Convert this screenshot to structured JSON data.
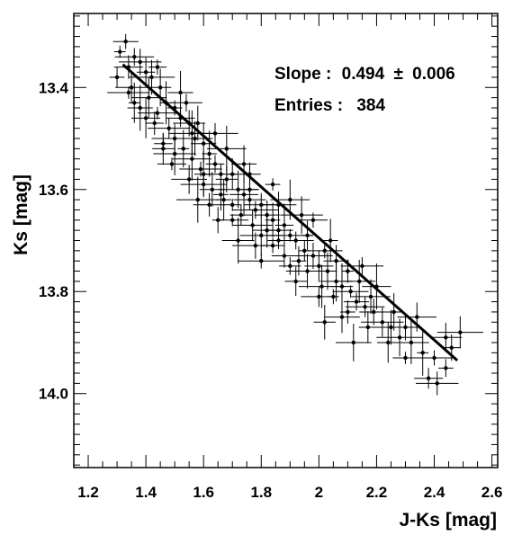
{
  "chart_data": {
    "type": "scatter",
    "xlabel": "J-Ks [mag]",
    "ylabel": "Ks [mag]",
    "xlim": [
      1.15,
      2.62
    ],
    "ylim": [
      13.255,
      14.145
    ],
    "y_inverted": true,
    "x_ticks": [
      {
        "value": 1.2,
        "label": "1.2"
      },
      {
        "value": 1.4,
        "label": "1.4"
      },
      {
        "value": 1.6,
        "label": "1.6"
      },
      {
        "value": 1.8,
        "label": "1.8"
      },
      {
        "value": 2.0,
        "label": "2"
      },
      {
        "value": 2.2,
        "label": "2.2"
      },
      {
        "value": 2.4,
        "label": "2.4"
      },
      {
        "value": 2.6,
        "label": "2.6"
      }
    ],
    "y_ticks": [
      {
        "value": 13.4,
        "label": "13.4"
      },
      {
        "value": 13.6,
        "label": "13.6"
      },
      {
        "value": 13.8,
        "label": "13.8"
      },
      {
        "value": 14.0,
        "label": "14.0"
      }
    ],
    "fit_line": {
      "x": [
        1.32,
        2.48
      ],
      "y": [
        13.355,
        13.935
      ]
    },
    "annotations": {
      "slope_label": "Slope :",
      "slope_value": "0.494",
      "slope_pm": "±",
      "slope_err": "0.006",
      "entries_label": "Entries :",
      "entries_value": "384"
    },
    "x_err": [
      0.02,
      0.08
    ],
    "y_err": [
      0.012,
      0.045
    ],
    "points": [
      [
        1.31,
        13.33
      ],
      [
        1.33,
        13.31
      ],
      [
        1.36,
        13.34
      ],
      [
        1.3,
        13.38
      ],
      [
        1.34,
        13.36
      ],
      [
        1.38,
        13.35
      ],
      [
        1.4,
        13.37
      ],
      [
        1.35,
        13.4
      ],
      [
        1.42,
        13.38
      ],
      [
        1.45,
        13.4
      ],
      [
        1.41,
        13.42
      ],
      [
        1.47,
        13.43
      ],
      [
        1.38,
        13.44
      ],
      [
        1.44,
        13.45
      ],
      [
        1.5,
        13.44
      ],
      [
        1.52,
        13.46
      ],
      [
        1.48,
        13.48
      ],
      [
        1.43,
        13.47
      ],
      [
        1.55,
        13.47
      ],
      [
        1.5,
        13.5
      ],
      [
        1.46,
        13.52
      ],
      [
        1.57,
        13.5
      ],
      [
        1.53,
        13.52
      ],
      [
        1.6,
        13.51
      ],
      [
        1.56,
        13.54
      ],
      [
        1.62,
        13.53
      ],
      [
        1.49,
        13.55
      ],
      [
        1.59,
        13.56
      ],
      [
        1.64,
        13.55
      ],
      [
        1.66,
        13.57
      ],
      [
        1.6,
        13.59
      ],
      [
        1.68,
        13.58
      ],
      [
        1.55,
        13.58
      ],
      [
        1.7,
        13.57
      ],
      [
        1.63,
        13.6
      ],
      [
        1.72,
        13.6
      ],
      [
        1.67,
        13.62
      ],
      [
        1.74,
        13.61
      ],
      [
        1.58,
        13.62
      ],
      [
        1.7,
        13.63
      ],
      [
        1.76,
        13.62
      ],
      [
        1.78,
        13.64
      ],
      [
        1.73,
        13.65
      ],
      [
        1.8,
        13.63
      ],
      [
        1.65,
        13.66
      ],
      [
        1.82,
        13.65
      ],
      [
        1.77,
        13.67
      ],
      [
        1.84,
        13.66
      ],
      [
        1.86,
        13.68
      ],
      [
        1.8,
        13.69
      ],
      [
        1.88,
        13.67
      ],
      [
        1.72,
        13.7
      ],
      [
        1.9,
        13.69
      ],
      [
        1.84,
        13.71
      ],
      [
        1.92,
        13.7
      ],
      [
        1.95,
        13.72
      ],
      [
        1.88,
        13.73
      ],
      [
        1.98,
        13.73
      ],
      [
        1.93,
        13.74
      ],
      [
        2.0,
        13.75
      ],
      [
        1.96,
        13.76
      ],
      [
        2.03,
        13.76
      ],
      [
        2.06,
        13.78
      ],
      [
        2.01,
        13.79
      ],
      [
        2.08,
        13.79
      ],
      [
        2.11,
        13.8
      ],
      [
        2.05,
        13.81
      ],
      [
        2.13,
        13.82
      ],
      [
        2.16,
        13.83
      ],
      [
        2.1,
        13.84
      ],
      [
        2.19,
        13.84
      ],
      [
        2.22,
        13.86
      ],
      [
        2.17,
        13.87
      ],
      [
        2.25,
        13.87
      ],
      [
        2.28,
        13.89
      ],
      [
        2.24,
        13.9
      ],
      [
        2.32,
        13.9
      ],
      [
        2.36,
        13.92
      ],
      [
        2.3,
        13.93
      ],
      [
        2.4,
        13.93
      ],
      [
        2.44,
        13.95
      ],
      [
        2.38,
        13.97
      ],
      [
        2.41,
        13.98
      ],
      [
        2.46,
        13.91
      ],
      [
        2.44,
        13.89
      ],
      [
        2.49,
        13.88
      ],
      [
        2.02,
        13.86
      ],
      [
        2.12,
        13.9
      ],
      [
        1.36,
        13.43
      ],
      [
        1.52,
        13.41
      ],
      [
        1.68,
        13.52
      ],
      [
        1.84,
        13.59
      ],
      [
        1.98,
        13.66
      ],
      [
        2.15,
        13.75
      ],
      [
        1.46,
        13.51
      ],
      [
        1.62,
        13.63
      ],
      [
        1.78,
        13.71
      ],
      [
        1.92,
        13.78
      ],
      [
        2.08,
        13.85
      ],
      [
        1.58,
        13.47
      ],
      [
        1.74,
        13.55
      ],
      [
        1.9,
        13.62
      ],
      [
        2.04,
        13.7
      ],
      [
        2.2,
        13.79
      ],
      [
        1.34,
        13.41
      ],
      [
        1.44,
        13.36
      ],
      [
        1.54,
        13.43
      ],
      [
        1.64,
        13.49
      ],
      [
        1.76,
        13.57
      ],
      [
        1.86,
        13.63
      ],
      [
        1.96,
        13.69
      ],
      [
        2.06,
        13.74
      ],
      [
        2.18,
        13.81
      ],
      [
        2.26,
        13.84
      ],
      [
        1.4,
        13.46
      ],
      [
        1.5,
        13.53
      ],
      [
        1.6,
        13.57
      ],
      [
        1.7,
        13.66
      ],
      [
        1.8,
        13.74
      ],
      [
        1.9,
        13.75
      ],
      [
        2.0,
        13.81
      ],
      [
        2.1,
        13.76
      ],
      [
        2.3,
        13.87
      ],
      [
        2.34,
        13.85
      ],
      [
        1.66,
        13.61
      ],
      [
        1.82,
        13.68
      ],
      [
        1.94,
        13.65
      ],
      [
        1.76,
        13.6
      ],
      [
        2.14,
        13.78
      ],
      [
        1.56,
        13.49
      ],
      [
        1.86,
        13.7
      ],
      [
        2.02,
        13.72
      ]
    ]
  }
}
